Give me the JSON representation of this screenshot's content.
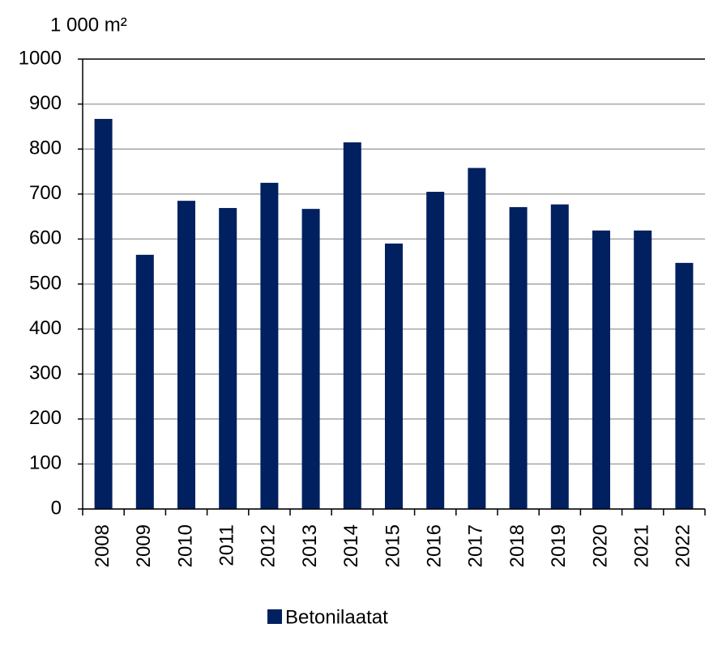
{
  "chart_data": {
    "type": "bar",
    "y_axis_label": "1 000 m²",
    "categories": [
      "2008",
      "2009",
      "2010",
      "2011",
      "2012",
      "2013",
      "2014",
      "2015",
      "2016",
      "2017",
      "2018",
      "2019",
      "2020",
      "2021",
      "2022"
    ],
    "series": [
      {
        "name": "Betonilaatat",
        "color": "#002060",
        "values": [
          867,
          565,
          685,
          669,
          725,
          667,
          815,
          590,
          705,
          758,
          671,
          677,
          619,
          619,
          547
        ]
      }
    ],
    "ylim": [
      0,
      1000
    ],
    "yticks": [
      0,
      100,
      200,
      300,
      400,
      500,
      600,
      700,
      800,
      900,
      1000
    ],
    "grid": true,
    "legend": "bottom"
  }
}
